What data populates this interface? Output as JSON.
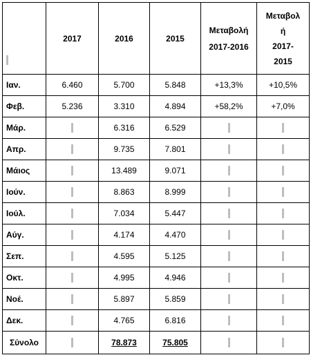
{
  "headers": {
    "col_2017": "2017",
    "col_2016": "2016",
    "col_2015": "2015",
    "change_a_line1": "Μεταβολή",
    "change_a_line2": "2017-2016",
    "change_b_line1": "Μεταβολ",
    "change_b_line2": "ή",
    "change_b_line3": "2017-",
    "change_b_line4": "2015"
  },
  "rows": [
    {
      "month": "Ιαν.",
      "y2017": "6.460",
      "y2016": "5.700",
      "y2015": "5.848",
      "chg_a": "+13,3%",
      "chg_b": "+10,5%"
    },
    {
      "month": "Φεβ.",
      "y2017": "5.236",
      "y2016": "3.310",
      "y2015": "4.894",
      "chg_a": "+58,2%",
      "chg_b": "+7,0%"
    },
    {
      "month": "Μάρ.",
      "y2017": "",
      "y2016": "6.316",
      "y2015": "6.529",
      "chg_a": "",
      "chg_b": ""
    },
    {
      "month": "Απρ.",
      "y2017": "",
      "y2016": "9.735",
      "y2015": "7.801",
      "chg_a": "",
      "chg_b": ""
    },
    {
      "month": "Μάιος",
      "y2017": "",
      "y2016": "13.489",
      "y2015": "9.071",
      "chg_a": "",
      "chg_b": ""
    },
    {
      "month": "Ιούν.",
      "y2017": "",
      "y2016": "8.863",
      "y2015": "8.999",
      "chg_a": "",
      "chg_b": ""
    },
    {
      "month": "Ιούλ.",
      "y2017": "",
      "y2016": "7.034",
      "y2015": "5.447",
      "chg_a": "",
      "chg_b": ""
    },
    {
      "month": "Αύγ.",
      "y2017": "",
      "y2016": "4.174",
      "y2015": "4.470",
      "chg_a": "",
      "chg_b": ""
    },
    {
      "month": "Σεπ.",
      "y2017": "",
      "y2016": "4.595",
      "y2015": "5.125",
      "chg_a": "",
      "chg_b": ""
    },
    {
      "month": "Οκτ.",
      "y2017": "",
      "y2016": "4.995",
      "y2015": "4.946",
      "chg_a": "",
      "chg_b": ""
    },
    {
      "month": "Νοέ.",
      "y2017": "",
      "y2016": "5.897",
      "y2015": "5.859",
      "chg_a": "",
      "chg_b": ""
    },
    {
      "month": "Δεκ.",
      "y2017": "",
      "y2016": "4.765",
      "y2015": "6.816",
      "chg_a": "",
      "chg_b": ""
    }
  ],
  "total": {
    "label": "Σύνολο",
    "y2017": "",
    "y2016": "78.873",
    "y2015": "75.805",
    "chg_a": "",
    "chg_b": ""
  }
}
